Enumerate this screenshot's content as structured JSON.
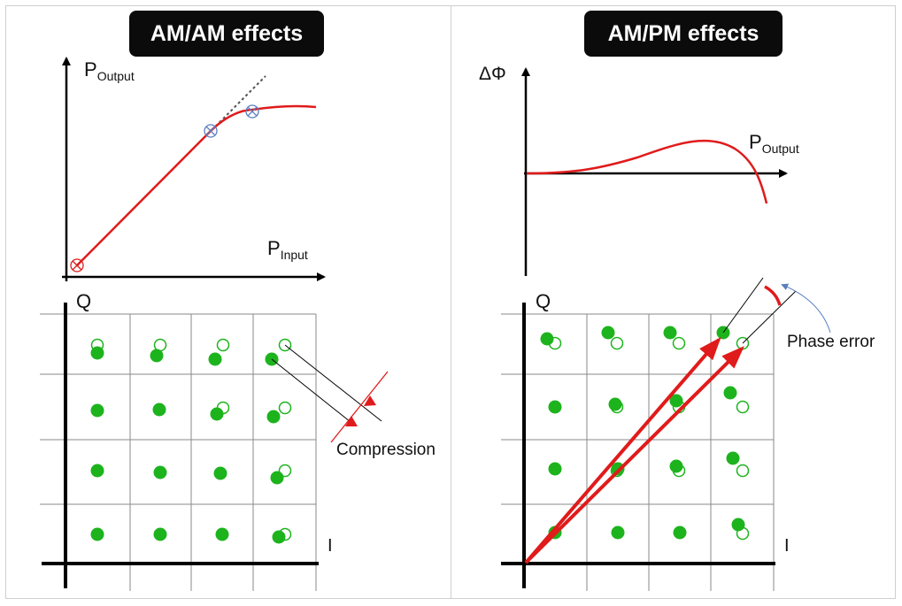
{
  "left_panel": {
    "title": "AM/AM effects",
    "transfer_plot": {
      "y_axis_label": "P",
      "y_axis_sub": "Output",
      "x_axis_label": "P",
      "x_axis_sub": "Input"
    },
    "constellation": {
      "q_label": "Q",
      "i_label": "I",
      "annotation": "Compression"
    }
  },
  "right_panel": {
    "title": "AM/PM effects",
    "phase_plot": {
      "y_axis_label": "ΔΦ",
      "x_axis_label": "P",
      "x_axis_sub": "Output"
    },
    "constellation": {
      "q_label": "Q",
      "i_label": "I",
      "annotation": "Phase error"
    }
  },
  "colors": {
    "curve_red": "#e01b1b",
    "dot_green": "#1db31d",
    "axis_black": "#000000",
    "grid_gray": "#888888",
    "marker_blue": "#5a7fc0",
    "badge_bg": "#0b0b0b"
  }
}
